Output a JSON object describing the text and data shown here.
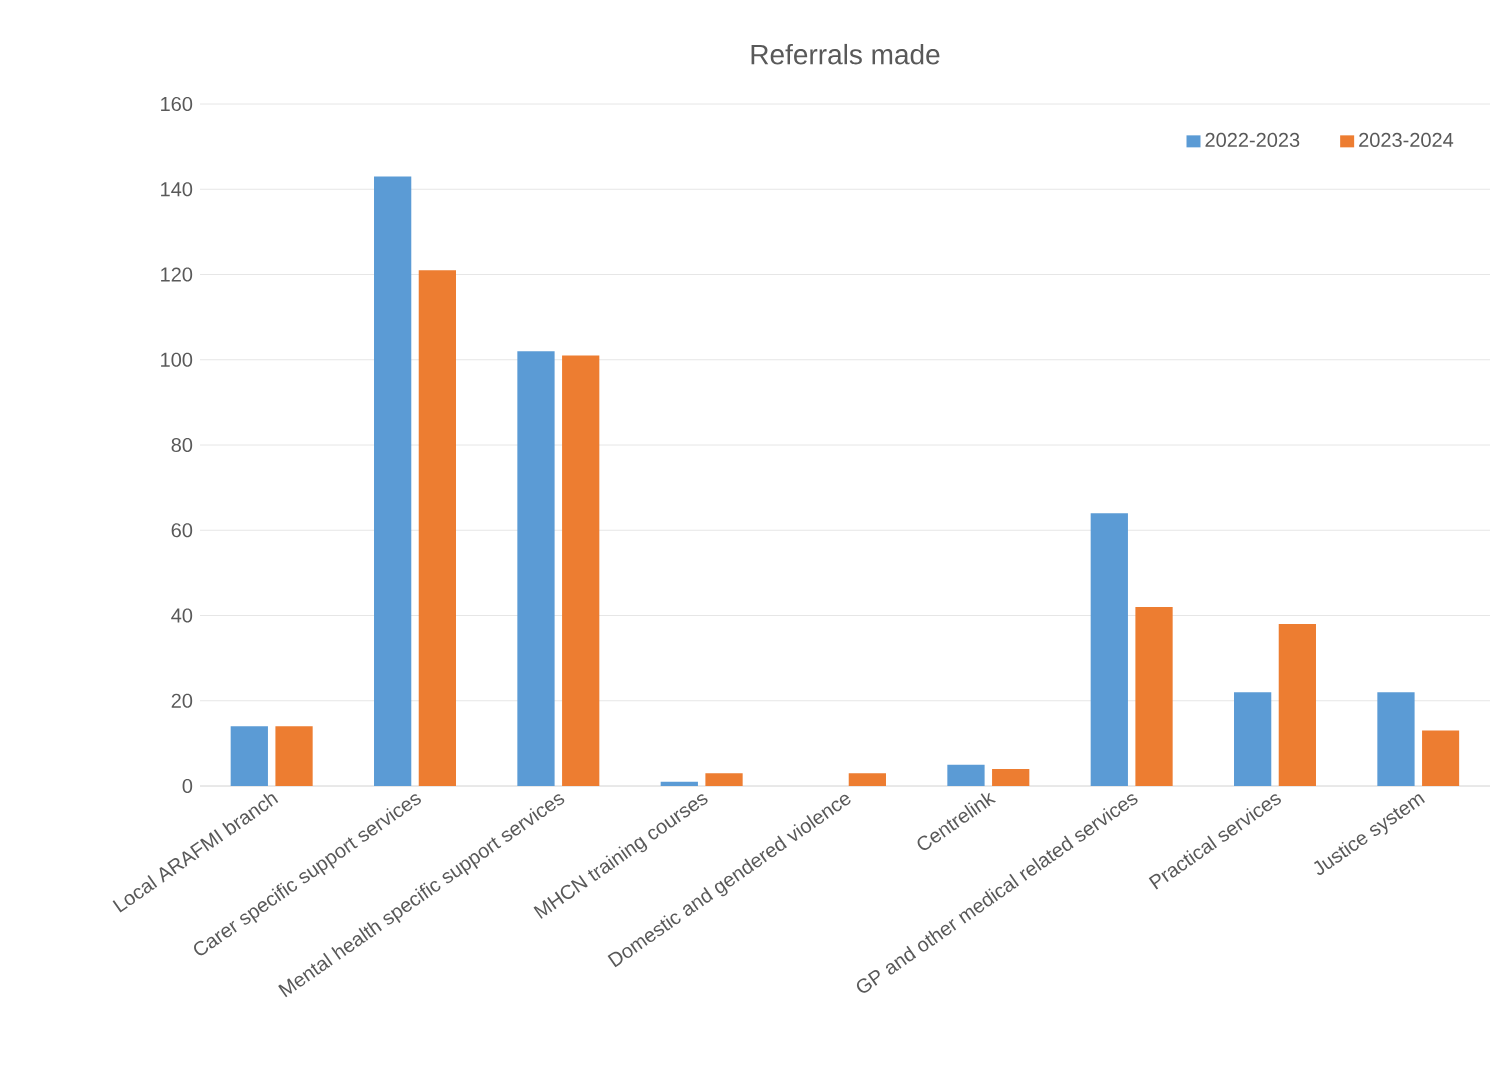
{
  "chart_data": {
    "type": "bar",
    "title": "Referrals made",
    "categories": [
      "Local ARAFMI branch",
      "Carer specific support services",
      "Mental health specific support services",
      "MHCN training courses",
      "Domestic and gendered violence",
      "Centrelink",
      "GP and other medical related services",
      "Practical services",
      "Justice system"
    ],
    "series": [
      {
        "name": "2022-2023",
        "color": "#5b9bd5",
        "values": [
          14,
          143,
          102,
          1,
          0,
          5,
          64,
          22,
          22
        ]
      },
      {
        "name": "2023-2024",
        "color": "#ed7d31",
        "values": [
          14,
          121,
          101,
          3,
          3,
          4,
          42,
          38,
          13
        ]
      }
    ],
    "ylim": [
      0,
      160
    ],
    "yticks": [
      0,
      20,
      40,
      60,
      80,
      100,
      120,
      140,
      160
    ],
    "grid": "y",
    "legend": "top right"
  }
}
